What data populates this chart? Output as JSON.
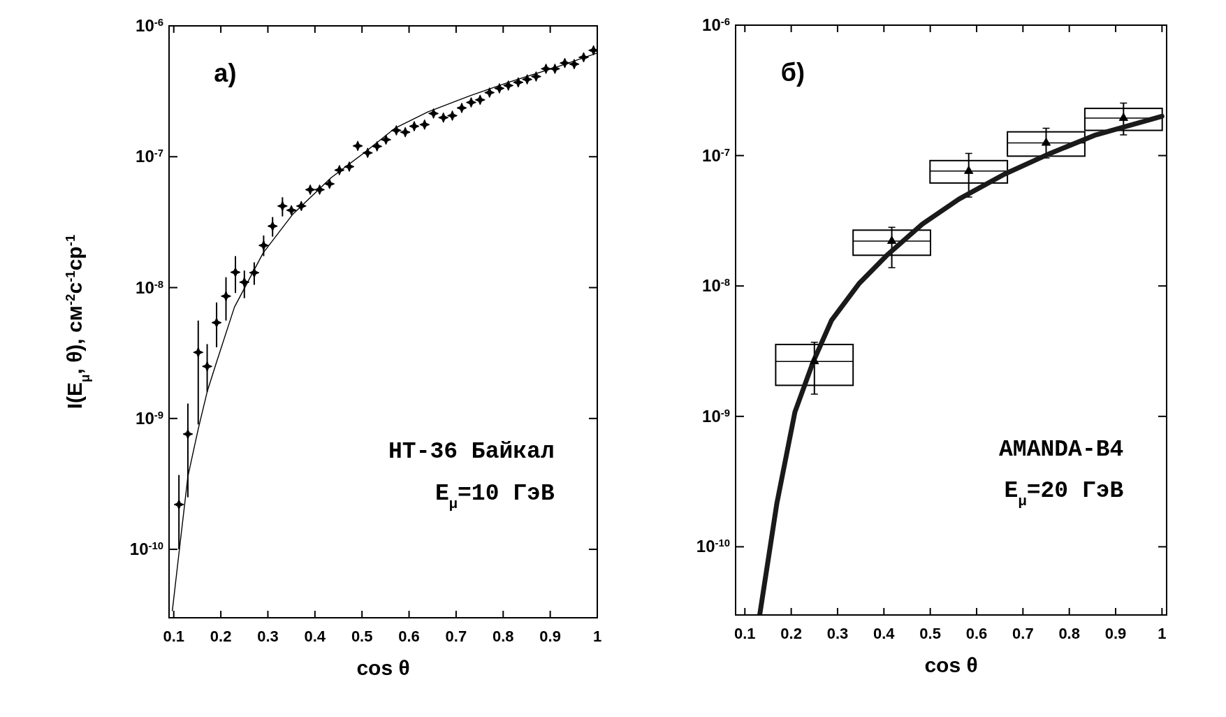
{
  "chart_data": [
    {
      "type": "scatter",
      "xlabel": "cos θ",
      "ylabel": "I(E$_{μ}$, θ),  см$^{-2}$с$^{-1}$ср$^{-1}$",
      "log": "y",
      "xlim": [
        0.09,
        1
      ],
      "xticks": [
        0.1,
        0.2,
        0.3,
        0.4,
        0.5,
        0.6,
        0.7,
        0.8,
        0.9,
        1
      ],
      "ylim": [
        3e-11,
        1e-06
      ],
      "yticks": [
        {
          "value": 1e-10,
          "label": "10$^{-10}$"
        },
        {
          "value": 1e-09,
          "label": "10$^{-9}$"
        },
        {
          "value": 1e-08,
          "label": "10$^{-8}$"
        },
        {
          "value": 1e-07,
          "label": "10$^{-7}$"
        },
        {
          "value": 1e-06,
          "label": "10$^{-6}$"
        }
      ],
      "annotations": [
        "а)",
        "HT-36 Байкал",
        "E$_{μ}$=10 ГэВ"
      ],
      "series": [
        {
          "marker": "star",
          "color": "#000000",
          "x": [
            0.111,
            0.13,
            0.152,
            0.171,
            0.191,
            0.211,
            0.231,
            0.25,
            0.271,
            0.291,
            0.31,
            0.331,
            0.35,
            0.371,
            0.39,
            0.41,
            0.431,
            0.452,
            0.473,
            0.491,
            0.512,
            0.532,
            0.551,
            0.573,
            0.592,
            0.611,
            0.633,
            0.652,
            0.673,
            0.692,
            0.712,
            0.732,
            0.751,
            0.771,
            0.792,
            0.811,
            0.832,
            0.851,
            0.87,
            0.891,
            0.91,
            0.931,
            0.951,
            0.971,
            0.992
          ],
          "values": [
            2.2e-10,
            7.6e-10,
            3.2e-09,
            2.5e-09,
            5.4e-09,
            8.6e-09,
            1.31e-08,
            1.1e-08,
            1.3e-08,
            2.1e-08,
            2.95e-08,
            4.2e-08,
            3.9e-08,
            4.2e-08,
            5.6e-08,
            5.6e-08,
            6.2e-08,
            7.9e-08,
            8.4e-08,
            1.21e-07,
            1.07e-07,
            1.2e-07,
            1.35e-07,
            1.59e-07,
            1.54e-07,
            1.71e-07,
            1.76e-07,
            2.14e-07,
            1.99e-07,
            2.06e-07,
            2.36e-07,
            2.6e-07,
            2.72e-07,
            3.09e-07,
            3.33e-07,
            3.5e-07,
            3.7e-07,
            3.9e-07,
            4.1e-07,
            4.7e-07,
            4.7e-07,
            5.2e-07,
            5.1e-07,
            5.75e-07,
            6.5e-07
          ],
          "errors": [
            [
              1e-10,
              3.7e-10
            ],
            [
              2.5e-10,
              1.3e-09
            ],
            [
              9e-10,
              5.6e-09
            ],
            [
              1.6e-09,
              3.7e-09
            ],
            [
              3.5e-09,
              7.7e-09
            ],
            [
              5.6e-09,
              1.2e-08
            ],
            [
              9.1e-09,
              1.74e-08
            ],
            [
              8.3e-09,
              1.35e-08
            ],
            [
              1.05e-08,
              1.56e-08
            ],
            [
              1.74e-08,
              2.5e-08
            ],
            [
              2.45e-08,
              3.46e-08
            ],
            [
              3.5e-08,
              4.9e-08
            ],
            null,
            null,
            null,
            null,
            null,
            null,
            null,
            null,
            null,
            null,
            null,
            null,
            null,
            null,
            null,
            null,
            null,
            null,
            null,
            null,
            null,
            null,
            null,
            null,
            null,
            null,
            null,
            null,
            null,
            null,
            null,
            null,
            null
          ]
        },
        {
          "type": "line",
          "color": "#000000",
          "x": [
            0.097,
            0.111,
            0.13,
            0.152,
            0.171,
            0.191,
            0.229,
            0.29,
            0.352,
            0.434,
            0.503,
            0.571,
            0.64,
            0.729,
            0.811,
            0.914,
            1.0
          ],
          "values": [
            3.4e-11,
            9.3e-11,
            3.6e-10,
            8.3e-10,
            1.6e-09,
            2.7e-09,
            7.1e-09,
            1.84e-08,
            3.6e-08,
            6.9e-08,
            1.06e-07,
            1.66e-07,
            2.2e-07,
            2.92e-07,
            3.7e-07,
            4.85e-07,
            6.2e-07
          ]
        }
      ]
    },
    {
      "type": "bar",
      "xlabel": "cos θ",
      "log": "y",
      "xlim": [
        0.08,
        1.01
      ],
      "xticks": [
        0.1,
        0.2,
        0.3,
        0.4,
        0.5,
        0.6,
        0.7,
        0.8,
        0.9,
        1
      ],
      "ylim": [
        3e-11,
        1e-06
      ],
      "yticks": [
        {
          "value": 1e-10,
          "label": "10$^{-10}$"
        },
        {
          "value": 1e-09,
          "label": "10$^{-9}$"
        },
        {
          "value": 1e-08,
          "label": "10$^{-8}$"
        },
        {
          "value": 1e-07,
          "label": "10$^{-7}$"
        },
        {
          "value": 1e-06,
          "label": "10$^{-6}$"
        }
      ],
      "annotations": [
        "б)",
        "AMANDA-B4",
        "E$_{μ}$=20 ГэВ"
      ],
      "series": [
        {
          "color": "#000000",
          "x": [
            0.25,
            0.417,
            0.583,
            0.75,
            0.917
          ],
          "base": [
            1.73e-09,
            1.72e-08,
            6.16e-08,
            9.9e-08,
            1.56e-07
          ],
          "values": [
            1.83e-09,
            9.6e-09,
            2.99e-08,
            5.3e-08,
            7.4e-08
          ]
        },
        {
          "type": "scatter",
          "marker": "triangle",
          "color": "#000000",
          "x": [
            0.25,
            0.417,
            0.583,
            0.75,
            0.917
          ],
          "values": [
            2.64e-09,
            2.21e-08,
            7.6e-08,
            1.25e-07,
            1.94e-07
          ],
          "errors": [
            [
              1.48e-09,
              3.7e-09
            ],
            [
              1.38e-08,
              2.82e-08
            ],
            [
              4.8e-08,
              1.04e-07
            ],
            [
              9.6e-08,
              1.62e-07
            ],
            [
              1.44e-07,
              2.53e-07
            ]
          ],
          "xerrors": [
            0.083,
            0.083,
            0.083,
            0.083,
            0.083
          ]
        },
        {
          "type": "line",
          "color": "#1a1a1a",
          "x": [
            0.132,
            0.169,
            0.208,
            0.247,
            0.287,
            0.346,
            0.405,
            0.483,
            0.562,
            0.66,
            0.759,
            0.857,
            1.0
          ],
          "values": [
            3e-11,
            2.15e-10,
            1.08e-09,
            2.6e-09,
            5.45e-09,
            1.04e-08,
            1.7e-08,
            2.98e-08,
            4.64e-08,
            7.2e-08,
            1.04e-07,
            1.44e-07,
            2e-07
          ]
        }
      ]
    }
  ]
}
